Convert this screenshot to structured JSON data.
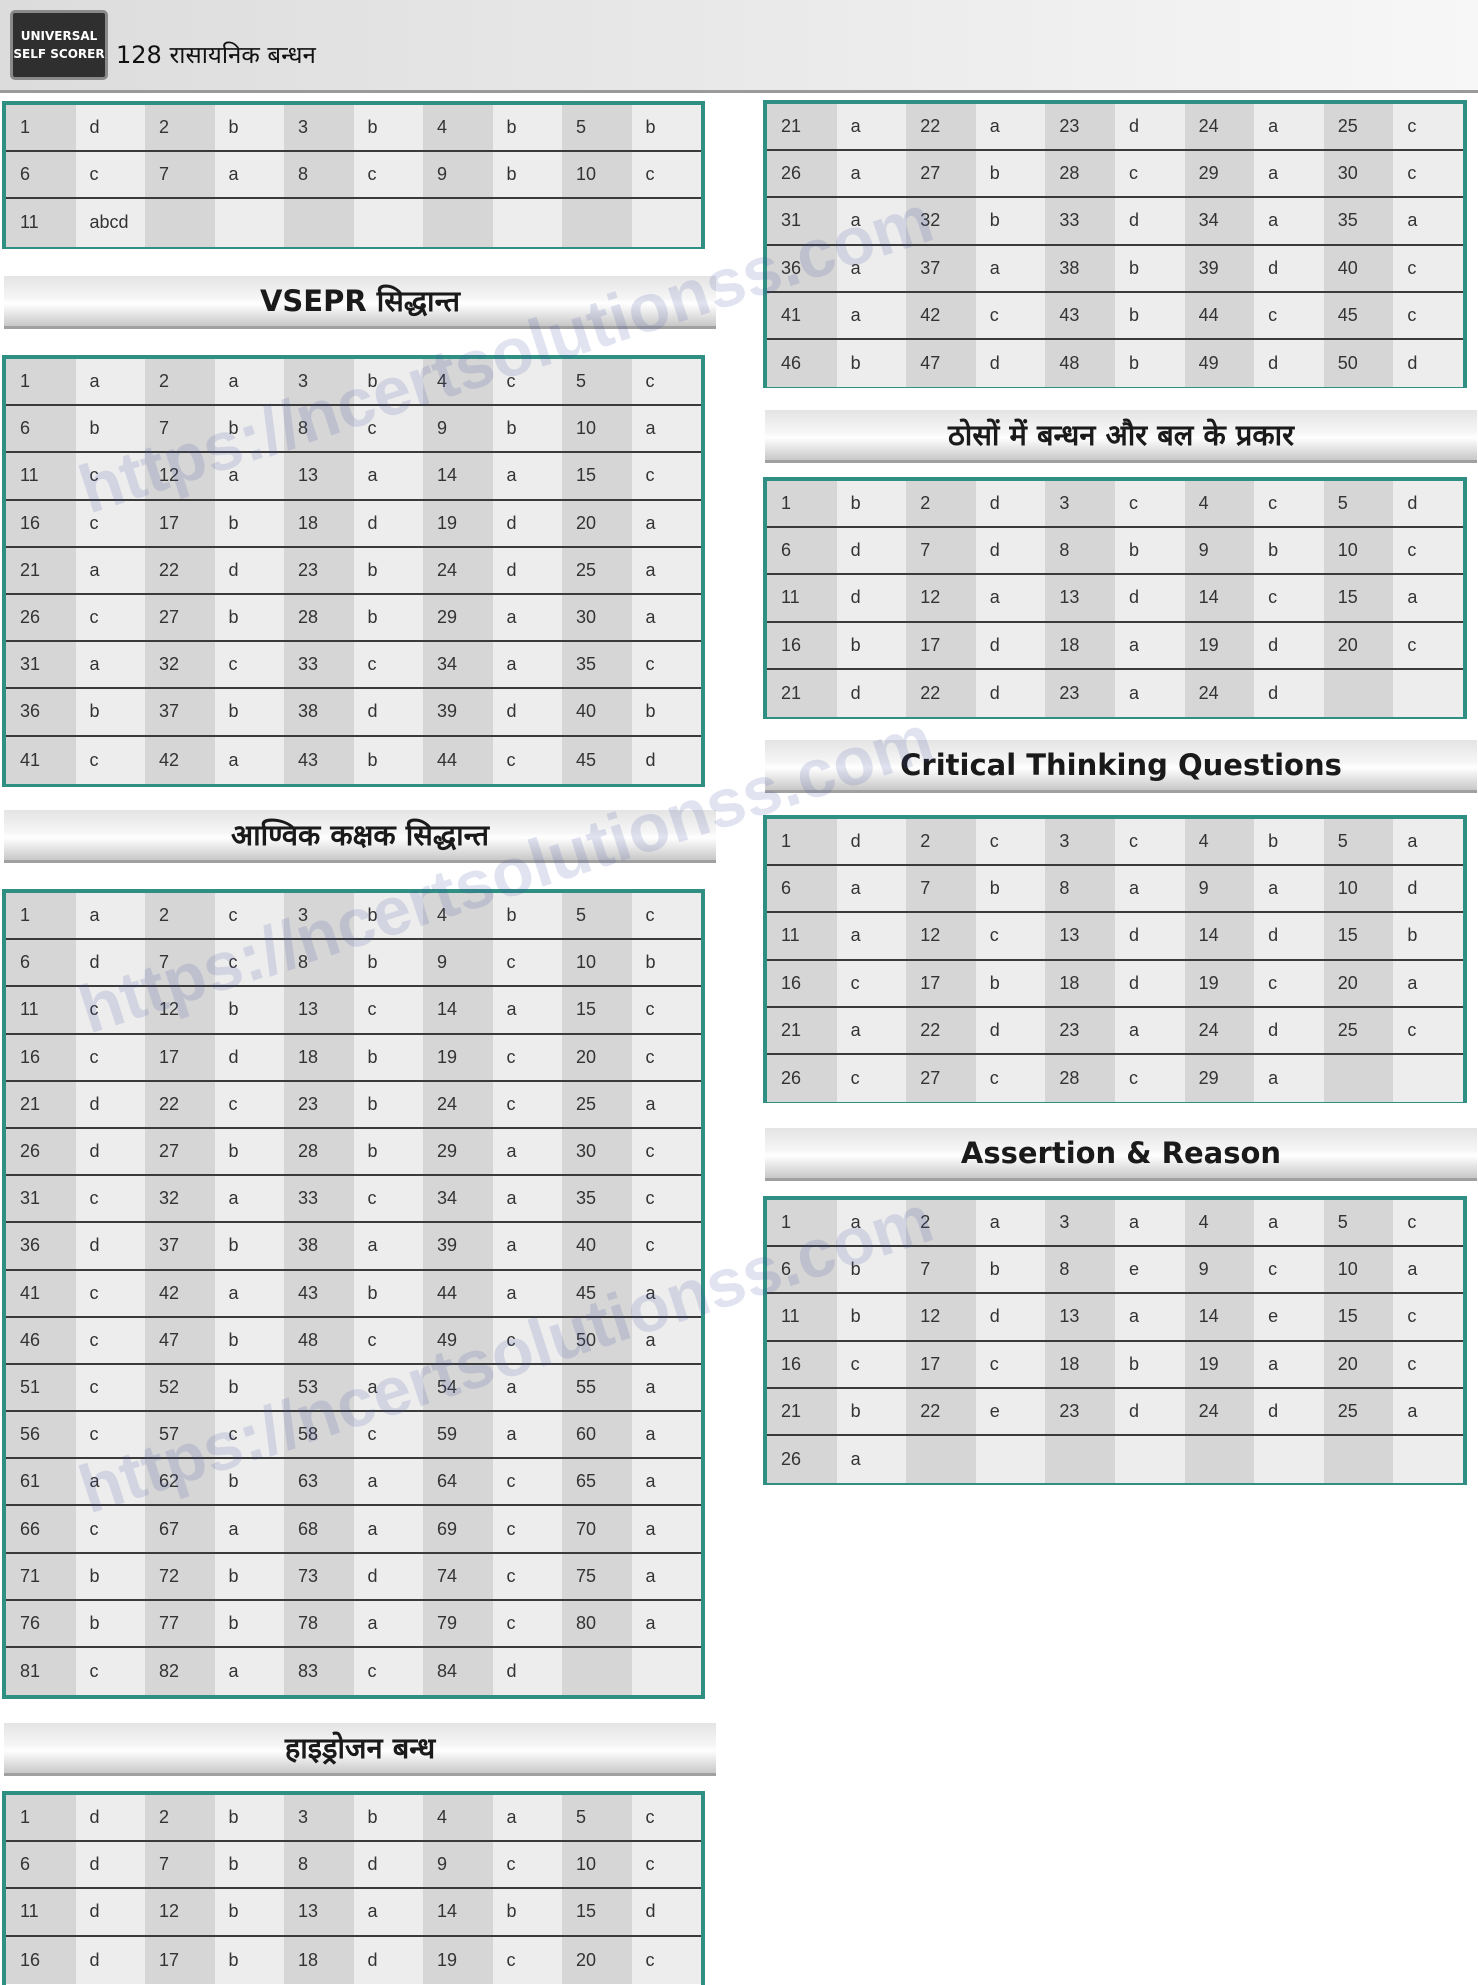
{
  "header": {
    "logo_line1": "UNIVERSAL",
    "logo_line2": "SELF SCORER",
    "title": "128 रासायनिक बन्धन"
  },
  "watermark": "https://ncertsolutionss.com",
  "tables": [
    {
      "key": "t0",
      "title": "",
      "rows": [
        [
          [
            "1",
            "d"
          ],
          [
            "2",
            "b"
          ],
          [
            "3",
            "b"
          ],
          [
            "4",
            "b"
          ],
          [
            "5",
            "b"
          ]
        ],
        [
          [
            "6",
            "c"
          ],
          [
            "7",
            "a"
          ],
          [
            "8",
            "c"
          ],
          [
            "9",
            "b"
          ],
          [
            "10",
            "c"
          ]
        ],
        [
          [
            "11",
            "abcd"
          ],
          [
            "",
            ""
          ],
          [
            "",
            ""
          ],
          [
            "",
            ""
          ],
          [
            "",
            ""
          ]
        ]
      ]
    },
    {
      "key": "t1",
      "title": "VSEPR सिद्धान्त",
      "rows": [
        [
          [
            "1",
            "a"
          ],
          [
            "2",
            "a"
          ],
          [
            "3",
            "b"
          ],
          [
            "4",
            "c"
          ],
          [
            "5",
            "c"
          ]
        ],
        [
          [
            "6",
            "b"
          ],
          [
            "7",
            "b"
          ],
          [
            "8",
            "c"
          ],
          [
            "9",
            "b"
          ],
          [
            "10",
            "a"
          ]
        ],
        [
          [
            "11",
            "c"
          ],
          [
            "12",
            "a"
          ],
          [
            "13",
            "a"
          ],
          [
            "14",
            "a"
          ],
          [
            "15",
            "c"
          ]
        ],
        [
          [
            "16",
            "c"
          ],
          [
            "17",
            "b"
          ],
          [
            "18",
            "d"
          ],
          [
            "19",
            "d"
          ],
          [
            "20",
            "a"
          ]
        ],
        [
          [
            "21",
            "a"
          ],
          [
            "22",
            "d"
          ],
          [
            "23",
            "b"
          ],
          [
            "24",
            "d"
          ],
          [
            "25",
            "a"
          ]
        ],
        [
          [
            "26",
            "c"
          ],
          [
            "27",
            "b"
          ],
          [
            "28",
            "b"
          ],
          [
            "29",
            "a"
          ],
          [
            "30",
            "a"
          ]
        ],
        [
          [
            "31",
            "a"
          ],
          [
            "32",
            "c"
          ],
          [
            "33",
            "c"
          ],
          [
            "34",
            "a"
          ],
          [
            "35",
            "c"
          ]
        ],
        [
          [
            "36",
            "b"
          ],
          [
            "37",
            "b"
          ],
          [
            "38",
            "d"
          ],
          [
            "39",
            "d"
          ],
          [
            "40",
            "b"
          ]
        ],
        [
          [
            "41",
            "c"
          ],
          [
            "42",
            "a"
          ],
          [
            "43",
            "b"
          ],
          [
            "44",
            "c"
          ],
          [
            "45",
            "d"
          ]
        ]
      ]
    },
    {
      "key": "t2",
      "title": "आण्विक कक्षक सिद्धान्त",
      "rows": [
        [
          [
            "1",
            "a"
          ],
          [
            "2",
            "c"
          ],
          [
            "3",
            "b"
          ],
          [
            "4",
            "b"
          ],
          [
            "5",
            "c"
          ]
        ],
        [
          [
            "6",
            "d"
          ],
          [
            "7",
            "c"
          ],
          [
            "8",
            "b"
          ],
          [
            "9",
            "c"
          ],
          [
            "10",
            "b"
          ]
        ],
        [
          [
            "11",
            "c"
          ],
          [
            "12",
            "b"
          ],
          [
            "13",
            "c"
          ],
          [
            "14",
            "a"
          ],
          [
            "15",
            "c"
          ]
        ],
        [
          [
            "16",
            "c"
          ],
          [
            "17",
            "d"
          ],
          [
            "18",
            "b"
          ],
          [
            "19",
            "c"
          ],
          [
            "20",
            "c"
          ]
        ],
        [
          [
            "21",
            "d"
          ],
          [
            "22",
            "c"
          ],
          [
            "23",
            "b"
          ],
          [
            "24",
            "c"
          ],
          [
            "25",
            "a"
          ]
        ],
        [
          [
            "26",
            "d"
          ],
          [
            "27",
            "b"
          ],
          [
            "28",
            "b"
          ],
          [
            "29",
            "a"
          ],
          [
            "30",
            "c"
          ]
        ],
        [
          [
            "31",
            "c"
          ],
          [
            "32",
            "a"
          ],
          [
            "33",
            "c"
          ],
          [
            "34",
            "a"
          ],
          [
            "35",
            "c"
          ]
        ],
        [
          [
            "36",
            "d"
          ],
          [
            "37",
            "b"
          ],
          [
            "38",
            "a"
          ],
          [
            "39",
            "a"
          ],
          [
            "40",
            "c"
          ]
        ],
        [
          [
            "41",
            "c"
          ],
          [
            "42",
            "a"
          ],
          [
            "43",
            "b"
          ],
          [
            "44",
            "a"
          ],
          [
            "45",
            "a"
          ]
        ],
        [
          [
            "46",
            "c"
          ],
          [
            "47",
            "b"
          ],
          [
            "48",
            "c"
          ],
          [
            "49",
            "c"
          ],
          [
            "50",
            "a"
          ]
        ],
        [
          [
            "51",
            "c"
          ],
          [
            "52",
            "b"
          ],
          [
            "53",
            "a"
          ],
          [
            "54",
            "a"
          ],
          [
            "55",
            "a"
          ]
        ],
        [
          [
            "56",
            "c"
          ],
          [
            "57",
            "c"
          ],
          [
            "58",
            "c"
          ],
          [
            "59",
            "a"
          ],
          [
            "60",
            "a"
          ]
        ],
        [
          [
            "61",
            "a"
          ],
          [
            "62",
            "b"
          ],
          [
            "63",
            "a"
          ],
          [
            "64",
            "c"
          ],
          [
            "65",
            "a"
          ]
        ],
        [
          [
            "66",
            "c"
          ],
          [
            "67",
            "a"
          ],
          [
            "68",
            "a"
          ],
          [
            "69",
            "c"
          ],
          [
            "70",
            "a"
          ]
        ],
        [
          [
            "71",
            "b"
          ],
          [
            "72",
            "b"
          ],
          [
            "73",
            "d"
          ],
          [
            "74",
            "c"
          ],
          [
            "75",
            "a"
          ]
        ],
        [
          [
            "76",
            "b"
          ],
          [
            "77",
            "b"
          ],
          [
            "78",
            "a"
          ],
          [
            "79",
            "c"
          ],
          [
            "80",
            "a"
          ]
        ],
        [
          [
            "81",
            "c"
          ],
          [
            "82",
            "a"
          ],
          [
            "83",
            "c"
          ],
          [
            "84",
            "d"
          ],
          [
            "",
            ""
          ]
        ]
      ]
    },
    {
      "key": "t3",
      "title": "हाइड्रोजन बन्ध",
      "rows": [
        [
          [
            "1",
            "d"
          ],
          [
            "2",
            "b"
          ],
          [
            "3",
            "b"
          ],
          [
            "4",
            "a"
          ],
          [
            "5",
            "c"
          ]
        ],
        [
          [
            "6",
            "d"
          ],
          [
            "7",
            "b"
          ],
          [
            "8",
            "d"
          ],
          [
            "9",
            "c"
          ],
          [
            "10",
            "c"
          ]
        ],
        [
          [
            "11",
            "d"
          ],
          [
            "12",
            "b"
          ],
          [
            "13",
            "a"
          ],
          [
            "14",
            "b"
          ],
          [
            "15",
            "d"
          ]
        ],
        [
          [
            "16",
            "d"
          ],
          [
            "17",
            "b"
          ],
          [
            "18",
            "d"
          ],
          [
            "19",
            "c"
          ],
          [
            "20",
            "c"
          ]
        ]
      ]
    },
    {
      "key": "t4",
      "title": "",
      "rows": [
        [
          [
            "21",
            "a"
          ],
          [
            "22",
            "a"
          ],
          [
            "23",
            "d"
          ],
          [
            "24",
            "a"
          ],
          [
            "25",
            "c"
          ]
        ],
        [
          [
            "26",
            "a"
          ],
          [
            "27",
            "b"
          ],
          [
            "28",
            "c"
          ],
          [
            "29",
            "a"
          ],
          [
            "30",
            "c"
          ]
        ],
        [
          [
            "31",
            "a"
          ],
          [
            "32",
            "b"
          ],
          [
            "33",
            "d"
          ],
          [
            "34",
            "a"
          ],
          [
            "35",
            "a"
          ]
        ],
        [
          [
            "36",
            "a"
          ],
          [
            "37",
            "a"
          ],
          [
            "38",
            "b"
          ],
          [
            "39",
            "d"
          ],
          [
            "40",
            "c"
          ]
        ],
        [
          [
            "41",
            "a"
          ],
          [
            "42",
            "c"
          ],
          [
            "43",
            "b"
          ],
          [
            "44",
            "c"
          ],
          [
            "45",
            "c"
          ]
        ],
        [
          [
            "46",
            "b"
          ],
          [
            "47",
            "d"
          ],
          [
            "48",
            "b"
          ],
          [
            "49",
            "d"
          ],
          [
            "50",
            "d"
          ]
        ]
      ]
    },
    {
      "key": "t5",
      "title": "ठोसों में बन्धन और बल के प्रकार",
      "rows": [
        [
          [
            "1",
            "b"
          ],
          [
            "2",
            "d"
          ],
          [
            "3",
            "c"
          ],
          [
            "4",
            "c"
          ],
          [
            "5",
            "d"
          ]
        ],
        [
          [
            "6",
            "d"
          ],
          [
            "7",
            "d"
          ],
          [
            "8",
            "b"
          ],
          [
            "9",
            "b"
          ],
          [
            "10",
            "c"
          ]
        ],
        [
          [
            "11",
            "d"
          ],
          [
            "12",
            "a"
          ],
          [
            "13",
            "d"
          ],
          [
            "14",
            "c"
          ],
          [
            "15",
            "a"
          ]
        ],
        [
          [
            "16",
            "b"
          ],
          [
            "17",
            "d"
          ],
          [
            "18",
            "a"
          ],
          [
            "19",
            "d"
          ],
          [
            "20",
            "c"
          ]
        ],
        [
          [
            "21",
            "d"
          ],
          [
            "22",
            "d"
          ],
          [
            "23",
            "a"
          ],
          [
            "24",
            "d"
          ],
          [
            "",
            ""
          ]
        ]
      ]
    },
    {
      "key": "t6",
      "title": "Critical Thinking Questions",
      "rows": [
        [
          [
            "1",
            "d"
          ],
          [
            "2",
            "c"
          ],
          [
            "3",
            "c"
          ],
          [
            "4",
            "b"
          ],
          [
            "5",
            "a"
          ]
        ],
        [
          [
            "6",
            "a"
          ],
          [
            "7",
            "b"
          ],
          [
            "8",
            "a"
          ],
          [
            "9",
            "a"
          ],
          [
            "10",
            "d"
          ]
        ],
        [
          [
            "11",
            "a"
          ],
          [
            "12",
            "c"
          ],
          [
            "13",
            "d"
          ],
          [
            "14",
            "d"
          ],
          [
            "15",
            "b"
          ]
        ],
        [
          [
            "16",
            "c"
          ],
          [
            "17",
            "b"
          ],
          [
            "18",
            "d"
          ],
          [
            "19",
            "c"
          ],
          [
            "20",
            "a"
          ]
        ],
        [
          [
            "21",
            "a"
          ],
          [
            "22",
            "d"
          ],
          [
            "23",
            "a"
          ],
          [
            "24",
            "d"
          ],
          [
            "25",
            "c"
          ]
        ],
        [
          [
            "26",
            "c"
          ],
          [
            "27",
            "c"
          ],
          [
            "28",
            "c"
          ],
          [
            "29",
            "a"
          ],
          [
            "",
            ""
          ]
        ]
      ]
    },
    {
      "key": "t7",
      "title": "Assertion & Reason",
      "rows": [
        [
          [
            "1",
            "a"
          ],
          [
            "2",
            "a"
          ],
          [
            "3",
            "a"
          ],
          [
            "4",
            "a"
          ],
          [
            "5",
            "c"
          ]
        ],
        [
          [
            "6",
            "b"
          ],
          [
            "7",
            "b"
          ],
          [
            "8",
            "e"
          ],
          [
            "9",
            "c"
          ],
          [
            "10",
            "a"
          ]
        ],
        [
          [
            "11",
            "b"
          ],
          [
            "12",
            "d"
          ],
          [
            "13",
            "a"
          ],
          [
            "14",
            "e"
          ],
          [
            "15",
            "c"
          ]
        ],
        [
          [
            "16",
            "c"
          ],
          [
            "17",
            "c"
          ],
          [
            "18",
            "b"
          ],
          [
            "19",
            "a"
          ],
          [
            "20",
            "c"
          ]
        ],
        [
          [
            "21",
            "b"
          ],
          [
            "22",
            "e"
          ],
          [
            "23",
            "d"
          ],
          [
            "24",
            "d"
          ],
          [
            "25",
            "a"
          ]
        ],
        [
          [
            "26",
            "a"
          ],
          [
            "",
            ""
          ],
          [
            "",
            ""
          ],
          [
            "",
            ""
          ],
          [
            "",
            ""
          ]
        ]
      ]
    }
  ]
}
